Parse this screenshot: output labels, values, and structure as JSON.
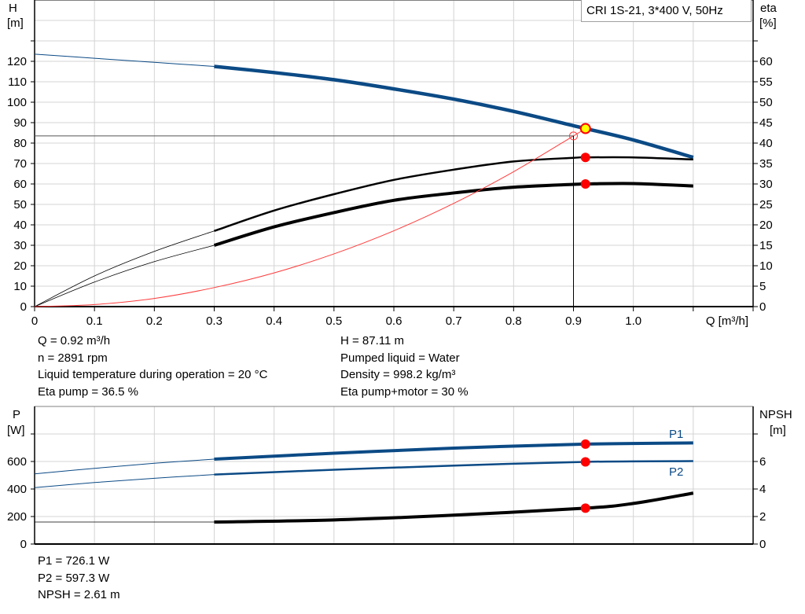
{
  "legend_box": "CRI 1S-21, 3*400 V, 50Hz",
  "colors": {
    "head": "#0b4a85",
    "efficiency": "#000000",
    "system": "#ff3b3b",
    "power": "#0b4a85",
    "npsh": "#000000",
    "marker": "#ff0000",
    "duty_point": "#ffff00",
    "grid": "#d4d4d4"
  },
  "duty_info": {
    "left": [
      "Q = 0.92 m³/h",
      "n = 2891 rpm",
      "Liquid temperature during operation = 20 °C",
      "Eta pump = 36.5 %"
    ],
    "right": [
      "H = 87.11 m",
      "Pumped liquid = Water",
      "Density = 998.2 kg/m³",
      "Eta pump+motor = 30 %"
    ]
  },
  "power_info": [
    "P1 = 726.1 W",
    "P2 = 597.3 W",
    "NPSH = 2.61 m"
  ],
  "chart_data": [
    {
      "type": "line",
      "xlabel": "Q [m³/h]",
      "ylabel": "H\n[m]",
      "ylabel_lines": [
        "H",
        "[m]"
      ],
      "y2label_lines": [
        "eta",
        "[%]"
      ],
      "xlim": [
        0,
        1.2
      ],
      "ylim": [
        0,
        150
      ],
      "y2lim": [
        0,
        75
      ],
      "x_ticks": [
        "0",
        "0.1",
        "0.2",
        "0.3",
        "0.4",
        "0.5",
        "0.6",
        "0.7",
        "0.8",
        "0.9",
        "1.0"
      ],
      "y_ticks": [
        "0",
        "10",
        "20",
        "30",
        "40",
        "50",
        "60",
        "70",
        "80",
        "90",
        "100",
        "110",
        "120"
      ],
      "y2_ticks": [
        "0",
        "5",
        "10",
        "15",
        "20",
        "25",
        "30",
        "35",
        "40",
        "45",
        "50",
        "55",
        "60"
      ],
      "grid": true,
      "operating_range_start": 0.3,
      "series": [
        {
          "key": "head",
          "axis": "left",
          "x": [
            0,
            0.1,
            0.2,
            0.3,
            0.4,
            0.5,
            0.6,
            0.7,
            0.8,
            0.9,
            0.92,
            1.0,
            1.1
          ],
          "y": [
            123.5,
            121.5,
            119.5,
            117.5,
            114.5,
            111,
            106.5,
            101.5,
            95.5,
            88.5,
            87.11,
            81.5,
            73
          ]
        },
        {
          "key": "eta_pump",
          "axis": "right",
          "x": [
            0,
            0.1,
            0.2,
            0.3,
            0.4,
            0.5,
            0.6,
            0.7,
            0.8,
            0.9,
            0.92,
            1.0,
            1.1
          ],
          "y": [
            0,
            7.5,
            13.5,
            18.5,
            23.5,
            27.5,
            31,
            33.5,
            35.5,
            36.4,
            36.5,
            36.5,
            36
          ]
        },
        {
          "key": "eta_pump_motor",
          "axis": "right",
          "x": [
            0,
            0.1,
            0.2,
            0.3,
            0.4,
            0.5,
            0.6,
            0.7,
            0.8,
            0.9,
            0.92,
            1.0,
            1.1
          ],
          "y": [
            0,
            6,
            11,
            15,
            19.5,
            23,
            26,
            27.8,
            29.2,
            29.9,
            30,
            30.1,
            29.5
          ]
        },
        {
          "key": "system",
          "axis": "left",
          "x": [
            0,
            0.1,
            0.2,
            0.3,
            0.4,
            0.5,
            0.6,
            0.7,
            0.8,
            0.9,
            0.92
          ],
          "y": [
            0,
            1,
            4,
            9.3,
            16.5,
            25.8,
            37.1,
            50.5,
            66,
            83.5,
            87.11
          ]
        }
      ],
      "duty_point": {
        "q": 0.92,
        "h": 87.11,
        "eta_pump": 36.5,
        "eta_pump_motor": 30
      },
      "system_reference": {
        "q": 0.9,
        "h": 83.5
      }
    },
    {
      "type": "line",
      "ylabel_lines": [
        "P",
        "[W]"
      ],
      "y2label_lines": [
        "NPSH",
        "[m]"
      ],
      "xlim": [
        0,
        1.2
      ],
      "ylim": [
        0,
        1000
      ],
      "y2lim": [
        0,
        10
      ],
      "y_ticks": [
        "0",
        "200",
        "400",
        "600"
      ],
      "y2_ticks": [
        "0",
        "2",
        "4",
        "6"
      ],
      "grid": true,
      "series": [
        {
          "key": "p1",
          "name": "P1",
          "axis": "left",
          "x": [
            0,
            0.1,
            0.2,
            0.3,
            0.5,
            0.7,
            0.92,
            1.1
          ],
          "y": [
            510,
            550,
            587,
            617,
            660,
            697,
            726.1,
            735
          ]
        },
        {
          "key": "p2",
          "name": "P2",
          "axis": "left",
          "x": [
            0,
            0.1,
            0.2,
            0.3,
            0.5,
            0.7,
            0.92,
            1.1
          ],
          "y": [
            410,
            447,
            478,
            505,
            540,
            570,
            597.3,
            603
          ]
        },
        {
          "key": "npsh",
          "axis": "right",
          "x": [
            0,
            0.3,
            0.5,
            0.7,
            0.92,
            1.0,
            1.1
          ],
          "y": [
            1.6,
            1.6,
            1.75,
            2.1,
            2.61,
            2.95,
            3.7
          ]
        }
      ],
      "duty_point": {
        "q": 0.92,
        "p1": 726.1,
        "p2": 597.3,
        "npsh": 2.61
      }
    }
  ]
}
